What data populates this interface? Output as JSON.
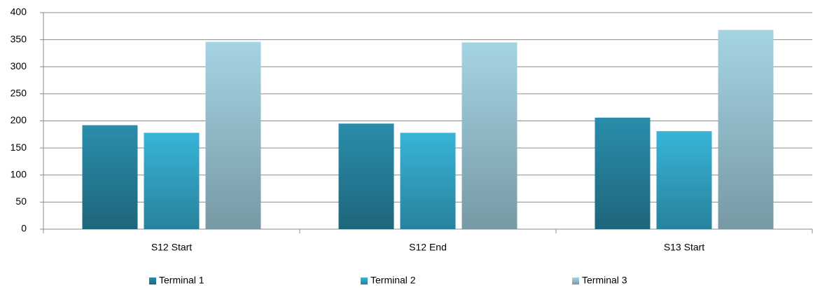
{
  "chart_data": {
    "type": "bar",
    "categories": [
      "S12 Start",
      "S12 End",
      "S13 Start"
    ],
    "series": [
      {
        "name": "Terminal 1",
        "color": "#2a8dab",
        "values": [
          192,
          195,
          206
        ]
      },
      {
        "name": "Terminal 2",
        "color": "#38b4d8",
        "values": [
          178,
          178,
          181
        ]
      },
      {
        "name": "Terminal 3",
        "color": "#a5d4e4",
        "values": [
          346,
          345,
          368
        ]
      }
    ],
    "ylim": [
      0,
      400
    ],
    "yticks": [
      0,
      50,
      100,
      150,
      200,
      250,
      300,
      350,
      400
    ],
    "grid": true,
    "legend": "bottom"
  }
}
